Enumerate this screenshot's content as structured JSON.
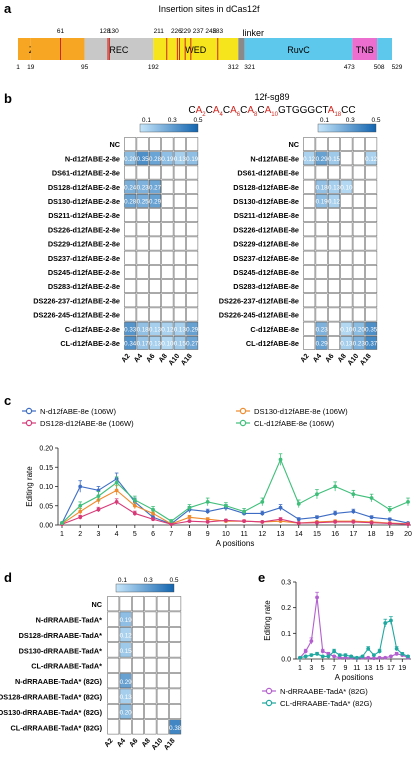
{
  "panels": {
    "a": "a",
    "b": "b",
    "c": "c",
    "d": "d",
    "e": "e"
  },
  "panel_a": {
    "title": "Insertion sites in dCas12f",
    "domains": [
      {
        "label": "ZF",
        "start": 1,
        "end": 19,
        "color": "#f6a623"
      },
      {
        "label": "",
        "start": 19,
        "end": 95,
        "color": "#f6a623"
      },
      {
        "label": "REC",
        "start": 95,
        "end": 192,
        "color": "#c8c8c8"
      },
      {
        "label": "WED",
        "start": 192,
        "end": 312,
        "color": "#f6e41c"
      },
      {
        "label": "",
        "start": 312,
        "end": 321,
        "color": "#8a8a8a"
      },
      {
        "label": "RuvC",
        "start": 321,
        "end": 473,
        "color": "#5ec8ec"
      },
      {
        "label": "TNB",
        "start": 473,
        "end": 508,
        "color": "#ec6fd0"
      },
      {
        "label": "",
        "start": 508,
        "end": 529,
        "color": "#5ec8ec"
      }
    ],
    "linker_label": "linker",
    "insertion_sites": [
      61,
      128,
      130,
      211,
      226,
      229,
      237,
      245,
      283
    ],
    "top_labels": [
      "61",
      "128",
      "130",
      "211",
      "226",
      "229",
      "237",
      "245",
      "283"
    ],
    "bottom_ticks": [
      1,
      19,
      95,
      192,
      312,
      321,
      473,
      508,
      529
    ]
  },
  "panel_b": {
    "sgRNA_name": "12f-sg89",
    "sequence": [
      {
        "t": "C",
        "c": "k"
      },
      {
        "t": "A",
        "c": "r"
      },
      {
        "t": "2",
        "c": "rs"
      },
      {
        "t": "C",
        "c": "k"
      },
      {
        "t": "A",
        "c": "r"
      },
      {
        "t": "4",
        "c": "rs"
      },
      {
        "t": "C",
        "c": "k"
      },
      {
        "t": "A",
        "c": "r"
      },
      {
        "t": "6",
        "c": "rs"
      },
      {
        "t": "C",
        "c": "k"
      },
      {
        "t": "A",
        "c": "r"
      },
      {
        "t": "8",
        "c": "rs"
      },
      {
        "t": "C",
        "c": "k"
      },
      {
        "t": "A",
        "c": "r"
      },
      {
        "t": "10",
        "c": "rs"
      },
      {
        "t": "GTGGGCT",
        "c": "k"
      },
      {
        "t": "A",
        "c": "r"
      },
      {
        "t": "18",
        "c": "rs"
      },
      {
        "t": "CC",
        "c": "k"
      }
    ],
    "colorbar_ticks": [
      "0.1",
      "0.3",
      "0.5"
    ],
    "columns": [
      "A2",
      "A4",
      "A6",
      "A8",
      "A10",
      "A18"
    ],
    "left": {
      "rows": [
        "NC",
        "N-d12fABE-2-8e",
        "DS61-d12fABE-2-8e",
        "DS128-d12fABE-2-8e",
        "DS130-d12fABE-2-8e",
        "DS211-d12fABE-2-8e",
        "DS226-d12fABE-2-8e",
        "DS229-d12fABE-2-8e",
        "DS237-d12fABE-2-8e",
        "DS245-d12fABE-2-8e",
        "DS283-d12fABE-2-8e",
        "DS226-237-d12fABE-2-8e",
        "DS226-245-d12fABE-2-8e",
        "C-d12fABE-2-8e",
        "CL-d12fABE-2-8e"
      ],
      "values": [
        [
          null,
          null,
          null,
          null,
          null,
          null
        ],
        [
          0.2,
          0.35,
          0.28,
          0.19,
          0.13,
          0.19
        ],
        [
          null,
          null,
          null,
          null,
          null,
          null
        ],
        [
          0.24,
          0.23,
          0.27,
          null,
          null,
          null
        ],
        [
          0.28,
          0.25,
          0.29,
          null,
          null,
          null
        ],
        [
          null,
          null,
          null,
          null,
          null,
          null
        ],
        [
          null,
          null,
          null,
          null,
          null,
          null
        ],
        [
          null,
          null,
          null,
          null,
          null,
          null
        ],
        [
          null,
          null,
          null,
          null,
          null,
          null
        ],
        [
          null,
          null,
          null,
          null,
          null,
          null
        ],
        [
          null,
          null,
          null,
          null,
          null,
          null
        ],
        [
          null,
          null,
          null,
          null,
          null,
          null
        ],
        [
          null,
          null,
          null,
          null,
          null,
          null
        ],
        [
          0.33,
          0.18,
          0.13,
          0.12,
          0.13,
          0.29
        ],
        [
          0.34,
          0.17,
          0.13,
          0.1,
          0.15,
          0.27
        ]
      ]
    },
    "right": {
      "rows": [
        "NC",
        "N-d12fABE-8e",
        "DS61-d12fABE-8e",
        "DS128-d12fABE-8e",
        "DS130-d12fABE-8e",
        "DS211-d12fABE-8e",
        "DS226-d12fABE-8e",
        "DS229-d12fABE-8e",
        "DS237-d12fABE-8e",
        "DS245-d12fABE-8e",
        "DS283-d12fABE-8e",
        "DS226-237-d12fABE-8e",
        "DS226-245-d12fABE-8e",
        "C-d12fABE-8e",
        "CL-d12fABE-8e"
      ],
      "values": [
        [
          null,
          null,
          null,
          null,
          null,
          null
        ],
        [
          0.12,
          0.29,
          0.15,
          null,
          null,
          0.12
        ],
        [
          null,
          null,
          null,
          null,
          null,
          null
        ],
        [
          null,
          0.18,
          0.13,
          0.1,
          null,
          null
        ],
        [
          null,
          0.19,
          0.12,
          null,
          null,
          null
        ],
        [
          null,
          null,
          null,
          null,
          null,
          null
        ],
        [
          null,
          null,
          null,
          null,
          null,
          null
        ],
        [
          null,
          null,
          null,
          null,
          null,
          null
        ],
        [
          null,
          null,
          null,
          null,
          null,
          null
        ],
        [
          null,
          null,
          null,
          null,
          null,
          null
        ],
        [
          null,
          null,
          null,
          null,
          null,
          null
        ],
        [
          null,
          null,
          null,
          null,
          null,
          null
        ],
        [
          null,
          null,
          null,
          null,
          null,
          null
        ],
        [
          null,
          0.23,
          null,
          0.1,
          0.2,
          0.35
        ],
        [
          null,
          0.29,
          null,
          0.13,
          0.23,
          0.37
        ]
      ]
    }
  },
  "chart_data": [
    {
      "type": "line",
      "panel": "c",
      "ylabel": "Editing rate",
      "xlabel": "A positions",
      "ylim": [
        0,
        0.2
      ],
      "yticks": [
        "0.00",
        "0.05",
        "0.10",
        "0.15",
        "0.20"
      ],
      "x": [
        1,
        2,
        3,
        4,
        5,
        6,
        7,
        8,
        9,
        10,
        11,
        12,
        13,
        14,
        15,
        16,
        17,
        18,
        19,
        20
      ],
      "series": [
        {
          "name": "N-d12fABE-8e (106W)",
          "color": "#3d6cc4",
          "values": [
            0.005,
            0.1,
            0.09,
            0.12,
            0.06,
            0.02,
            0.003,
            0.04,
            0.035,
            0.045,
            0.03,
            0.03,
            0.045,
            0.015,
            0.02,
            0.03,
            0.035,
            0.02,
            0.015,
            0.005
          ],
          "err": [
            0.003,
            0.015,
            0.01,
            0.015,
            0.01,
            0.006,
            0.002,
            0.008,
            0.006,
            0.008,
            0.005,
            0.006,
            0.008,
            0.004,
            0.004,
            0.006,
            0.006,
            0.004,
            0.003,
            0.002
          ]
        },
        {
          "name": "DS130-d12fABE-8e (106W)",
          "color": "#f08a2c",
          "values": [
            0.003,
            0.035,
            0.065,
            0.09,
            0.05,
            0.03,
            0.003,
            0.02,
            0.015,
            0.01,
            0.01,
            0.008,
            0.01,
            0.005,
            0.008,
            0.01,
            0.01,
            0.008,
            0.005,
            0.003
          ],
          "err": [
            0.002,
            0.008,
            0.01,
            0.012,
            0.008,
            0.006,
            0.002,
            0.005,
            0.004,
            0.003,
            0.003,
            0.002,
            0.003,
            0.002,
            0.002,
            0.003,
            0.003,
            0.002,
            0.002,
            0.001
          ]
        },
        {
          "name": "DS128-d12fABE-8e (106W)",
          "color": "#d83a78",
          "values": [
            0.002,
            0.02,
            0.04,
            0.06,
            0.03,
            0.015,
            0.002,
            0.01,
            0.008,
            0.012,
            0.01,
            0.008,
            0.015,
            0.005,
            0.006,
            0.008,
            0.008,
            0.006,
            0.004,
            0.002
          ],
          "err": [
            0.001,
            0.005,
            0.006,
            0.008,
            0.006,
            0.004,
            0.001,
            0.003,
            0.002,
            0.003,
            0.003,
            0.002,
            0.004,
            0.002,
            0.002,
            0.002,
            0.002,
            0.002,
            0.001,
            0.001
          ]
        },
        {
          "name": "CL-d12fABE-8e (106W)",
          "color": "#3fbf7a",
          "values": [
            0.005,
            0.05,
            0.075,
            0.11,
            0.065,
            0.04,
            0.01,
            0.045,
            0.06,
            0.05,
            0.035,
            0.06,
            0.17,
            0.055,
            0.08,
            0.1,
            0.08,
            0.07,
            0.04,
            0.06
          ],
          "err": [
            0.003,
            0.01,
            0.012,
            0.015,
            0.01,
            0.008,
            0.004,
            0.008,
            0.01,
            0.008,
            0.008,
            0.01,
            0.015,
            0.01,
            0.012,
            0.012,
            0.01,
            0.01,
            0.008,
            0.01
          ]
        }
      ]
    },
    {
      "type": "heatmap",
      "panel": "d",
      "colorbar_ticks": [
        "0.1",
        "0.3",
        "0.5"
      ],
      "columns": [
        "A2",
        "A4",
        "A6",
        "A8",
        "A10",
        "A18"
      ],
      "rows": [
        "NC",
        "N-dRRAABE-TadA*",
        "DS128-dRRAABE-TadA*",
        "DS130-dRRAABE-TadA*",
        "CL-dRRAABE-TadA*",
        "N-dRRAABE-TadA* (82G)",
        "DS128-dRRAABE-TadA* (82G)",
        "DS130-dRRAABE-TadA* (82G)",
        "CL-dRRAABE-TadA* (82G)"
      ],
      "values": [
        [
          null,
          null,
          null,
          null,
          null,
          null
        ],
        [
          null,
          0.19,
          null,
          null,
          null,
          null
        ],
        [
          null,
          0.12,
          null,
          null,
          null,
          null
        ],
        [
          null,
          0.15,
          null,
          null,
          null,
          null
        ],
        [
          null,
          null,
          null,
          null,
          null,
          null
        ],
        [
          null,
          0.29,
          null,
          null,
          null,
          null
        ],
        [
          null,
          0.13,
          null,
          null,
          null,
          null
        ],
        [
          null,
          0.2,
          null,
          null,
          null,
          null
        ],
        [
          null,
          null,
          null,
          null,
          null,
          0.38
        ]
      ]
    },
    {
      "type": "line",
      "panel": "e",
      "ylabel": "Editing rate",
      "xlabel": "A positions",
      "ylim": [
        0,
        0.3
      ],
      "yticks": [
        "0.0",
        "0.1",
        "0.2",
        "0.3"
      ],
      "xticks": [
        "1",
        "3",
        "5",
        "7",
        "9",
        "11",
        "13",
        "15",
        "17",
        "19"
      ],
      "x": [
        1,
        2,
        3,
        4,
        5,
        6,
        7,
        8,
        9,
        10,
        11,
        12,
        13,
        14,
        15,
        16,
        17,
        18,
        19,
        20
      ],
      "series": [
        {
          "name": "N-dRRAABE-TadA* (82G)",
          "color": "#b35fd0",
          "values": [
            0.005,
            0.03,
            0.07,
            0.24,
            0.03,
            0.02,
            0.01,
            0.005,
            0.005,
            0.005,
            0.003,
            0.005,
            0.005,
            0.003,
            0.005,
            0.005,
            0.01,
            0.02,
            0.015,
            0.005
          ],
          "err": [
            0.003,
            0.008,
            0.012,
            0.02,
            0.008,
            0.006,
            0.004,
            0.002,
            0.002,
            0.002,
            0.002,
            0.002,
            0.002,
            0.002,
            0.002,
            0.002,
            0.004,
            0.006,
            0.004,
            0.002
          ]
        },
        {
          "name": "CL-dRRAABE-TadA* (82G)",
          "color": "#1fa8a0",
          "values": [
            0.005,
            0.01,
            0.015,
            0.02,
            0.01,
            0.01,
            0.03,
            0.015,
            0.015,
            0.01,
            0.005,
            0.01,
            0.04,
            0.015,
            0.03,
            0.14,
            0.15,
            0.04,
            0.02,
            0.01
          ],
          "err": [
            0.002,
            0.004,
            0.005,
            0.006,
            0.004,
            0.004,
            0.008,
            0.005,
            0.005,
            0.004,
            0.002,
            0.004,
            0.008,
            0.005,
            0.008,
            0.015,
            0.015,
            0.008,
            0.005,
            0.004
          ]
        }
      ]
    }
  ]
}
